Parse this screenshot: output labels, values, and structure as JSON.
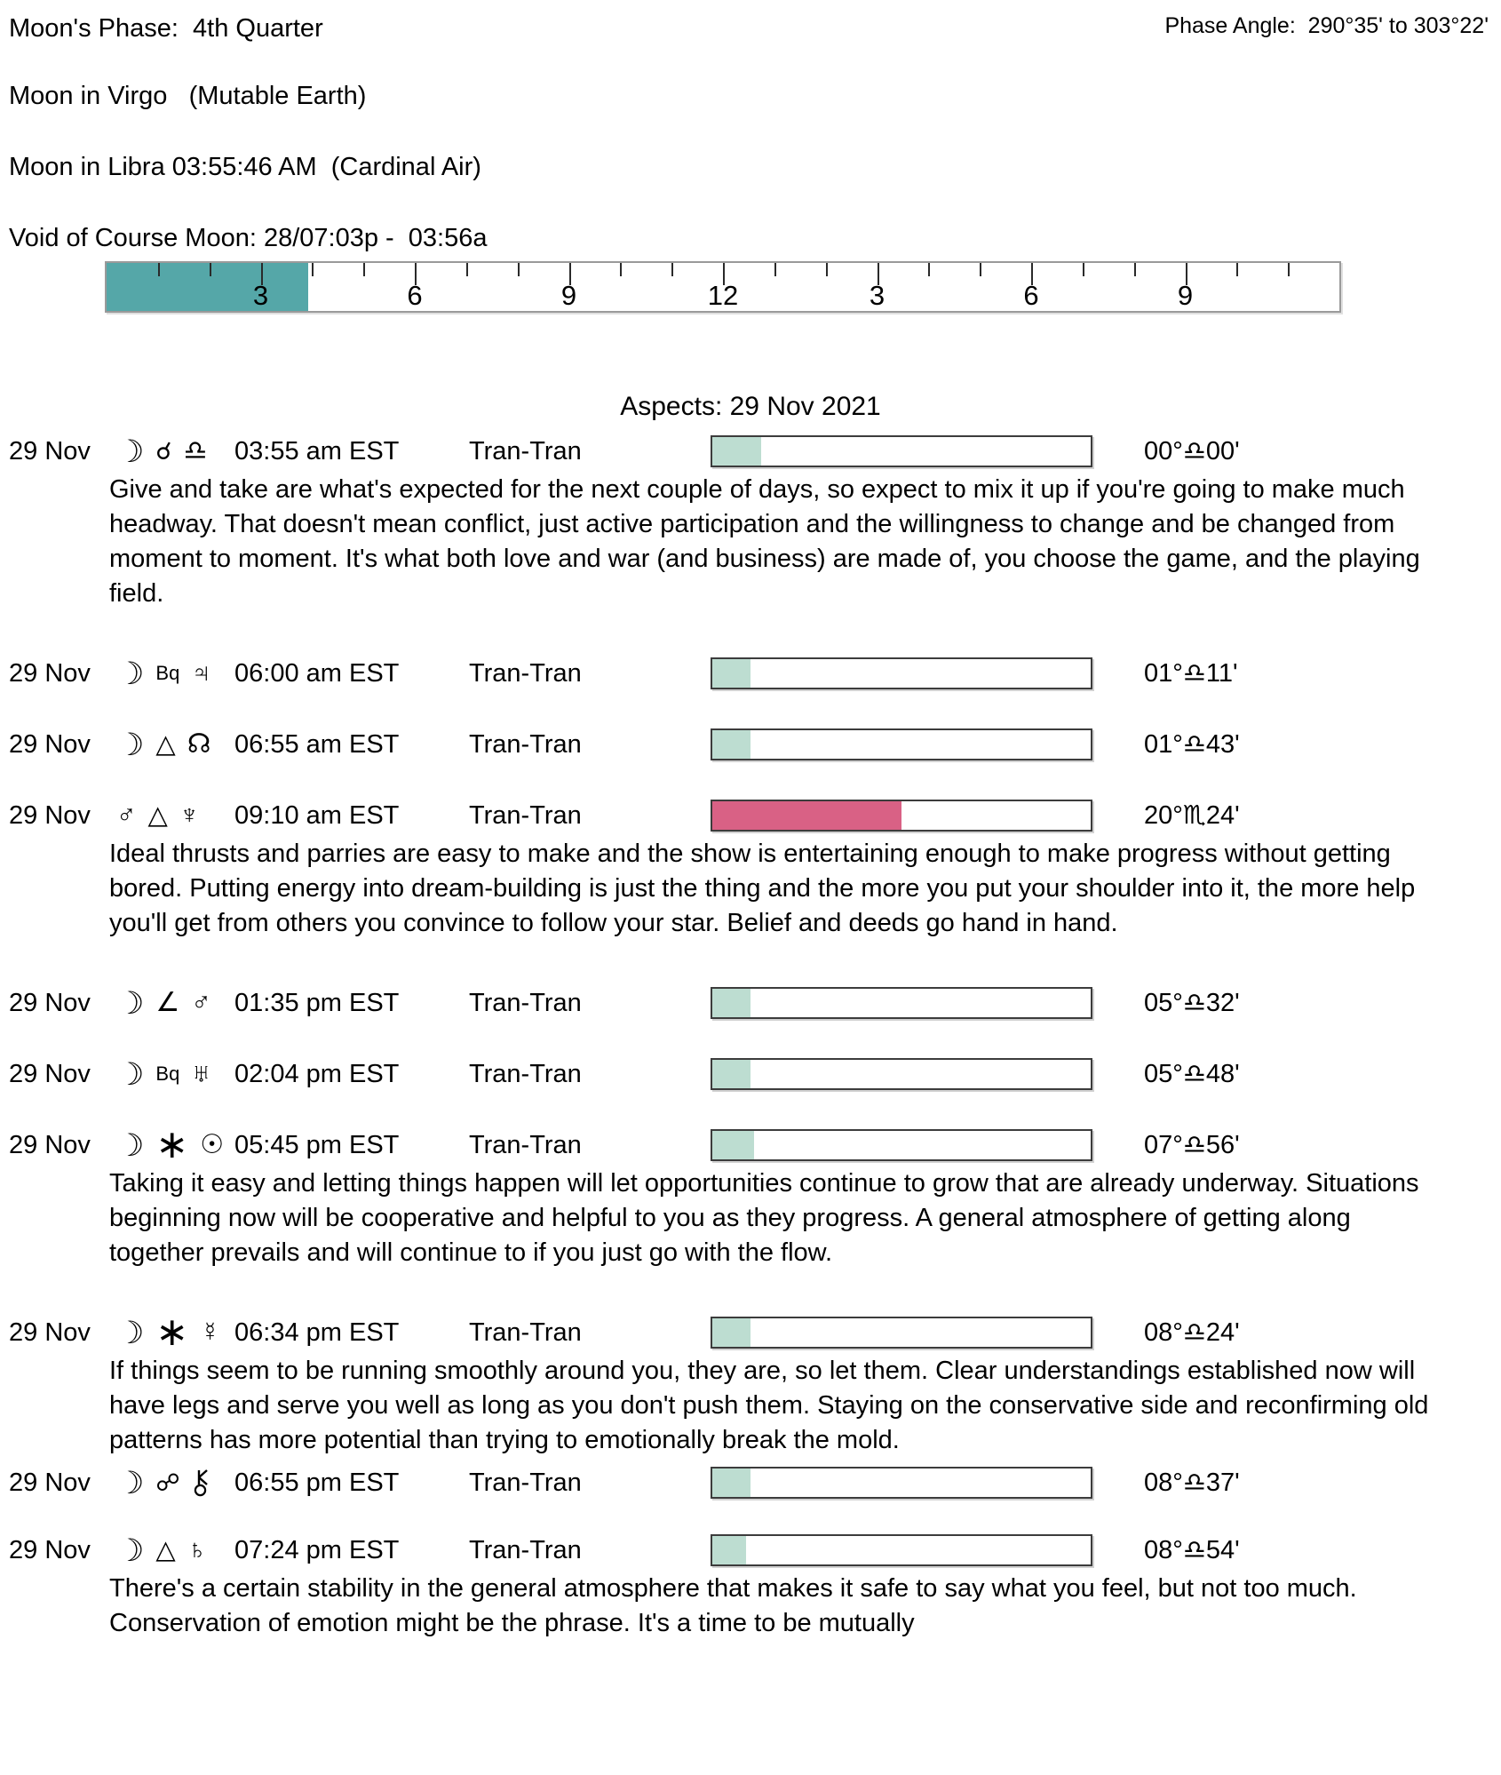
{
  "header": {
    "moons_phase": "Moon's Phase:  4th Quarter",
    "phase_angle": "Phase Angle:  290°35' to 303°22'",
    "moon_sign_line1": "Moon in Virgo   (Mutable Earth)",
    "moon_sign_line2": "Moon in Libra 03:55:46 AM  (Cardinal Air)",
    "void_of_course": "Void of Course Moon: 28/07:03p -  03:56a"
  },
  "ruler": {
    "total_hours": 24,
    "tick_every_hours": 1,
    "long_tick_every_hours": 3,
    "labels": [
      {
        "text": "3",
        "hour": 3
      },
      {
        "text": "6",
        "hour": 6
      },
      {
        "text": "9",
        "hour": 9
      },
      {
        "text": "12",
        "hour": 12
      },
      {
        "text": "3",
        "hour": 15
      },
      {
        "text": "6",
        "hour": 18
      },
      {
        "text": "9",
        "hour": 21
      }
    ],
    "void_fill": {
      "start_hour": 0,
      "end_hour": 3.93,
      "color": "#55A7A8"
    }
  },
  "colors": {
    "bar_teal": "#BDDDD1",
    "bar_pink": "#D96185",
    "ruler_teal": "#55A7A8"
  },
  "aspects": {
    "title": "Aspects: 29 Nov 2021",
    "rows": [
      {
        "date": "29 Nov",
        "symbols": [
          {
            "char": "☽",
            "name": "moon-icon"
          },
          {
            "char": "☌",
            "name": "conjunction-icon"
          },
          {
            "char": "♎",
            "name": "libra-icon"
          }
        ],
        "time": "03:55 am EST",
        "type": "Tran-Tran",
        "bar": {
          "fill_pct": 13,
          "color": "teal"
        },
        "position": "00°♎00'",
        "description": "Give and take are what's expected for the next couple of days, so expect to mix it up if you're going to make much headway. That doesn't mean conflict, just active participation and the willingness to change and be changed from moment to moment. It's what both love and war (and business) are made of, you choose the game, and the playing field."
      },
      {
        "date": "29 Nov",
        "symbols": [
          {
            "char": "☽",
            "name": "moon-icon"
          },
          {
            "char": "Bq",
            "name": "biquintile-label",
            "small": true
          },
          {
            "char": "♃",
            "name": "jupiter-icon"
          }
        ],
        "time": "06:00 am EST",
        "type": "Tran-Tran",
        "bar": {
          "fill_pct": 10,
          "color": "teal"
        },
        "position": "01°♎11'",
        "description": ""
      },
      {
        "date": "29 Nov",
        "symbols": [
          {
            "char": "☽",
            "name": "moon-icon"
          },
          {
            "char": "△",
            "name": "trine-icon"
          },
          {
            "char": "☊",
            "name": "north-node-icon"
          }
        ],
        "time": "06:55 am EST",
        "type": "Tran-Tran",
        "bar": {
          "fill_pct": 10,
          "color": "teal"
        },
        "position": "01°♎43'",
        "description": ""
      },
      {
        "date": "29 Nov",
        "symbols": [
          {
            "char": "♂",
            "name": "mars-icon"
          },
          {
            "char": "△",
            "name": "trine-icon"
          },
          {
            "char": "♆",
            "name": "neptune-icon"
          }
        ],
        "time": "09:10 am EST",
        "type": "Tran-Tran",
        "bar": {
          "fill_pct": 50,
          "color": "pink"
        },
        "position": "20°♏24'",
        "description": "Ideal thrusts and parries are easy to make and the show is entertaining enough to make progress without getting bored. Putting energy into dream-building is just the thing and the more you put your shoulder into it, the more help you'll get from others you convince to follow your star. Belief and deeds go hand in hand."
      },
      {
        "date": "29 Nov",
        "symbols": [
          {
            "char": "☽",
            "name": "moon-icon"
          },
          {
            "char": "∠",
            "name": "semisquare-icon"
          },
          {
            "char": "♂",
            "name": "mars-icon"
          }
        ],
        "time": "01:35 pm EST",
        "type": "Tran-Tran",
        "bar": {
          "fill_pct": 10,
          "color": "teal"
        },
        "position": "05°♎32'",
        "description": ""
      },
      {
        "date": "29 Nov",
        "symbols": [
          {
            "char": "☽",
            "name": "moon-icon"
          },
          {
            "char": "Bq",
            "name": "biquintile-label",
            "small": true
          },
          {
            "char": "♅",
            "name": "uranus-icon"
          }
        ],
        "time": "02:04 pm EST",
        "type": "Tran-Tran",
        "bar": {
          "fill_pct": 10,
          "color": "teal"
        },
        "position": "05°♎48'",
        "description": ""
      },
      {
        "date": "29 Nov",
        "symbols": [
          {
            "char": "☽",
            "name": "moon-icon"
          },
          {
            "char": "∗",
            "name": "sextile-icon"
          },
          {
            "char": "☉",
            "name": "sun-icon"
          }
        ],
        "time": "05:45 pm EST",
        "type": "Tran-Tran",
        "bar": {
          "fill_pct": 11,
          "color": "teal"
        },
        "position": "07°♎56'",
        "description": "Taking it easy and letting things happen will let opportunities continue to grow that are already underway. Situations beginning now will be cooperative and helpful to you as they progress. A general atmosphere of getting along together prevails and will continue to if you just go with the flow."
      },
      {
        "date": "29 Nov",
        "symbols": [
          {
            "char": "☽",
            "name": "moon-icon"
          },
          {
            "char": "∗",
            "name": "sextile-icon"
          },
          {
            "char": "☿",
            "name": "mercury-icon"
          }
        ],
        "time": "06:34 pm EST",
        "type": "Tran-Tran",
        "bar": {
          "fill_pct": 10,
          "color": "teal"
        },
        "position": "08°♎24'",
        "description": "If things seem to be running smoothly around you, they are, so let them. Clear understandings established now will have legs and serve you well as long as you don't push them. Staying on the conservative side and reconfirming old patterns has more potential than trying to emotionally break the mold."
      },
      {
        "date": "29 Nov",
        "symbols": [
          {
            "char": "☽",
            "name": "moon-icon"
          },
          {
            "char": "☍",
            "name": "opposition-icon"
          },
          {
            "svg": "chiron",
            "name": "chiron-icon"
          }
        ],
        "time": "06:55 pm EST",
        "type": "Tran-Tran",
        "bar": {
          "fill_pct": 10,
          "color": "teal"
        },
        "position": "08°♎37'",
        "description": ""
      },
      {
        "date": "29 Nov",
        "symbols": [
          {
            "char": "☽",
            "name": "moon-icon"
          },
          {
            "char": "△",
            "name": "trine-icon"
          },
          {
            "char": "♄",
            "name": "saturn-icon"
          }
        ],
        "time": "07:24 pm EST",
        "type": "Tran-Tran",
        "bar": {
          "fill_pct": 9,
          "color": "teal"
        },
        "position": "08°♎54'",
        "description": "There's a certain stability in the general atmosphere that makes it safe to say what you feel, but not too much. Conservation of emotion might be the phrase. It's a time to be mutually"
      }
    ]
  }
}
